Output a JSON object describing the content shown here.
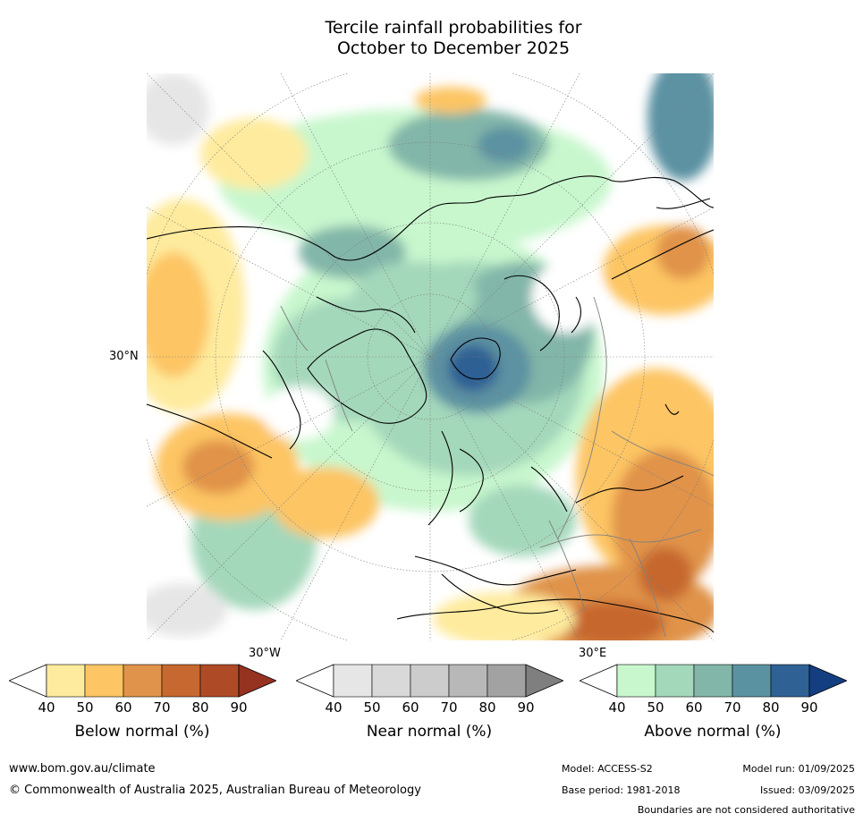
{
  "title": {
    "line1": "Tercile rainfall probabilities for",
    "line2": "October to December 2025"
  },
  "map": {
    "lat_label": "30°N",
    "lon_label_left": "30°W",
    "lon_label_right": "30°E",
    "colors": {
      "land_outline": "#000000",
      "border": "#808080",
      "graticule": "#7a7a7a"
    }
  },
  "colorbars": [
    {
      "label": "Below normal (%)",
      "ticks": [
        "40",
        "50",
        "60",
        "70",
        "80",
        "90"
      ],
      "colors": [
        "#ffffff",
        "#feeb9e",
        "#fdc563",
        "#e0934a",
        "#c6682f",
        "#ae4a26",
        "#963220"
      ]
    },
    {
      "label": "Near normal (%)",
      "ticks": [
        "40",
        "50",
        "60",
        "70",
        "80",
        "90"
      ],
      "colors": [
        "#ffffff",
        "#e6e6e6",
        "#d9d9d9",
        "#cccccc",
        "#b8b8b8",
        "#a2a2a2",
        "#7f7f7f"
      ]
    },
    {
      "label": "Above normal (%)",
      "ticks": [
        "40",
        "50",
        "60",
        "70",
        "80",
        "90"
      ],
      "colors": [
        "#ffffff",
        "#c8f7cd",
        "#a4d8bb",
        "#82b6a9",
        "#5b92a2",
        "#2f6194",
        "#133f80"
      ]
    }
  ],
  "footer": {
    "url": "www.bom.gov.au/climate",
    "copyright": "© Commonwealth of Australia 2025, Australian Bureau of Meteorology",
    "model": "Model: ACCESS-S2",
    "base_period": "Base period: 1981-2018",
    "model_run": "Model run: 01/09/2025",
    "issued": "Issued: 03/09/2025",
    "disclaimer": "Boundaries are not considered authoritative"
  }
}
